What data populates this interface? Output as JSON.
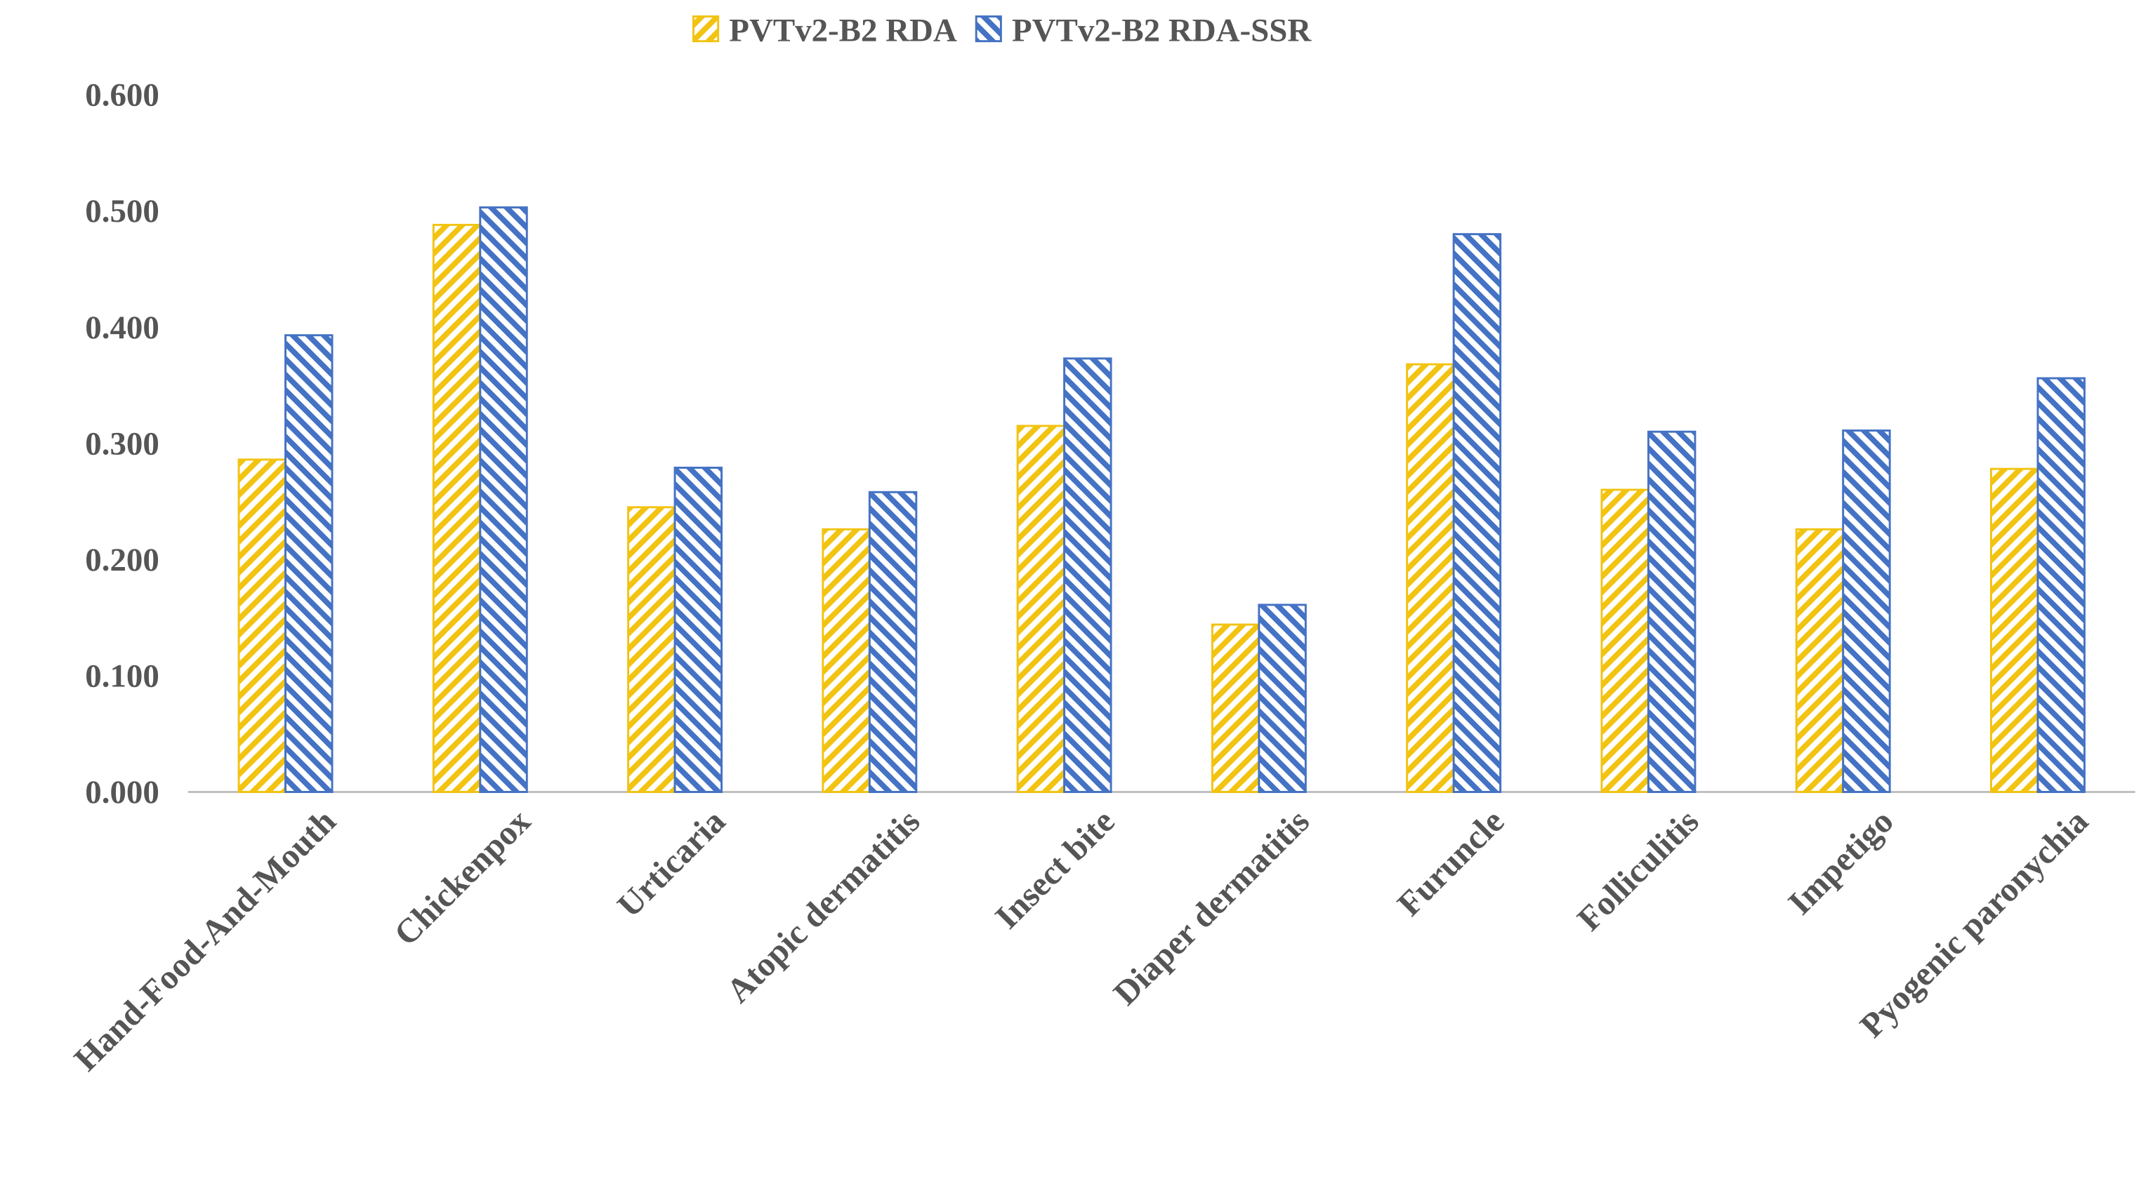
{
  "chart_data": {
    "type": "bar",
    "categories": [
      "Hand-Food-And-Mouth",
      "Chickenpox",
      "Urticaria",
      "Atopic dermatitis",
      "Insect bite",
      "Diaper dermatitis",
      "Furuncle",
      "Folliculitis",
      "Impetigo",
      "Pyogenic paronychia"
    ],
    "series": [
      {
        "name": "PVTv2-B2 RDA",
        "color": "#f2c311",
        "hatch": "forward",
        "values": [
          0.286,
          0.488,
          0.245,
          0.226,
          0.315,
          0.144,
          0.368,
          0.26,
          0.226,
          0.278
        ]
      },
      {
        "name": "PVTv2-B2 RDA-SSR",
        "color": "#4472c4",
        "hatch": "backward",
        "values": [
          0.393,
          0.503,
          0.279,
          0.258,
          0.373,
          0.161,
          0.48,
          0.31,
          0.311,
          0.356
        ]
      }
    ],
    "ylim": [
      0,
      0.6
    ],
    "yticks": [
      {
        "value": 0,
        "label": "0.000"
      },
      {
        "value": 0.1,
        "label": "0.100"
      },
      {
        "value": 0.2,
        "label": "0.200"
      },
      {
        "value": 0.3,
        "label": "0.300"
      },
      {
        "value": 0.4,
        "label": "0.400"
      },
      {
        "value": 0.5,
        "label": "0.500"
      },
      {
        "value": 0.6,
        "label": "0.600"
      }
    ],
    "grid": false,
    "legend": "top"
  }
}
